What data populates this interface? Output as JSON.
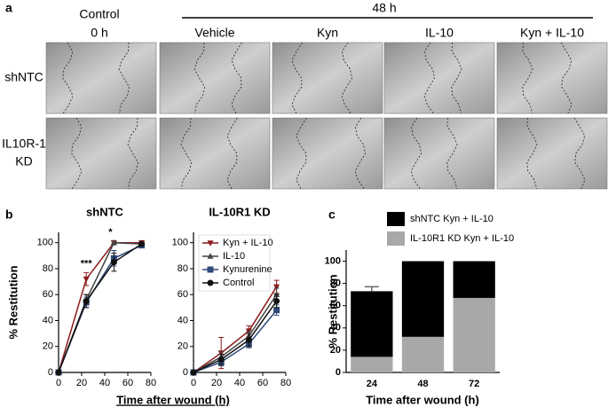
{
  "panel_a": {
    "label": "a",
    "control_header": "Control",
    "control_time": "0 h",
    "treatment_time": "48 h",
    "columns": [
      "Vehicle",
      "Kyn",
      "IL-10",
      "Kyn + IL-10"
    ],
    "rows": [
      [
        "shNTC"
      ],
      [
        "IL10R-1",
        "KD"
      ]
    ]
  },
  "panel_b_label": "b",
  "panel_c_label": "c",
  "chart_data": [
    {
      "type": "line",
      "title": "shNTC",
      "xlabel": "Time after wound (h)",
      "ylabel": "% Restitution",
      "x": [
        0,
        24,
        48,
        72
      ],
      "xlim": [
        0,
        80
      ],
      "xticks": [
        0,
        20,
        40,
        60,
        80
      ],
      "ylim": [
        0,
        108
      ],
      "yticks": [
        0,
        20,
        40,
        60,
        80,
        100
      ],
      "series": [
        {
          "color": "#8b1a1a",
          "marker": "triangle-down",
          "values": [
            0,
            72,
            100,
            100
          ],
          "errors": [
            1,
            5,
            1,
            1
          ]
        },
        {
          "color": "#444444",
          "marker": "triangle-up",
          "values": [
            0,
            56,
            100,
            99
          ],
          "errors": [
            1,
            4,
            1,
            1
          ]
        },
        {
          "color": "#2e4a7a",
          "marker": "square",
          "values": [
            0,
            54,
            88,
            98
          ],
          "errors": [
            1,
            4,
            6,
            2
          ]
        },
        {
          "color": "#111111",
          "marker": "circle",
          "values": [
            0,
            55,
            85,
            99
          ],
          "errors": [
            1,
            5,
            7,
            1
          ]
        }
      ],
      "annotations": [
        {
          "text": "***",
          "x": 24
        },
        {
          "text": "*",
          "x": 48
        }
      ]
    },
    {
      "type": "line",
      "title": "IL-10R1 KD",
      "legend": "upper left",
      "x": [
        0,
        24,
        48,
        72
      ],
      "xlim": [
        0,
        80
      ],
      "xticks": [
        0,
        20,
        40,
        60,
        80
      ],
      "ylim": [
        0,
        108
      ],
      "yticks": [
        0,
        20,
        40,
        60,
        80,
        100
      ],
      "series": [
        {
          "name": "Kyn + IL-10",
          "color": "#8b1a1a",
          "marker": "triangle-down",
          "values": [
            0,
            15,
            32,
            66
          ],
          "errors": [
            1,
            12,
            4,
            5
          ]
        },
        {
          "name": "IL-10",
          "color": "#444444",
          "marker": "triangle-up",
          "values": [
            0,
            12,
            28,
            60
          ],
          "errors": [
            1,
            4,
            4,
            5
          ]
        },
        {
          "name": "Kynurenine",
          "color": "#2e4a7a",
          "marker": "square",
          "values": [
            0,
            8,
            22,
            48
          ],
          "errors": [
            1,
            3,
            3,
            4
          ]
        },
        {
          "name": "Control",
          "color": "#111111",
          "marker": "circle",
          "values": [
            0,
            10,
            25,
            55
          ],
          "errors": [
            1,
            4,
            5,
            5
          ]
        }
      ]
    },
    {
      "type": "bar",
      "stacked": true,
      "xlabel": "Time after wound (h)",
      "ylabel": "% Restitution",
      "legend": "top",
      "categories": [
        "24",
        "48",
        "72"
      ],
      "ylim": [
        0,
        110
      ],
      "yticks": [
        0,
        20,
        40,
        60,
        80,
        100
      ],
      "series": [
        {
          "name": "IL-10R1 KD Kyn + IL-10",
          "color": "#a8a8a8",
          "values": [
            14,
            32,
            67
          ],
          "errors": [
            2,
            3,
            3
          ]
        },
        {
          "name": "shNTC Kyn + IL-10",
          "color": "#000000",
          "values": [
            59,
            68,
            33
          ],
          "errors": [
            4,
            null,
            null
          ]
        }
      ]
    }
  ]
}
